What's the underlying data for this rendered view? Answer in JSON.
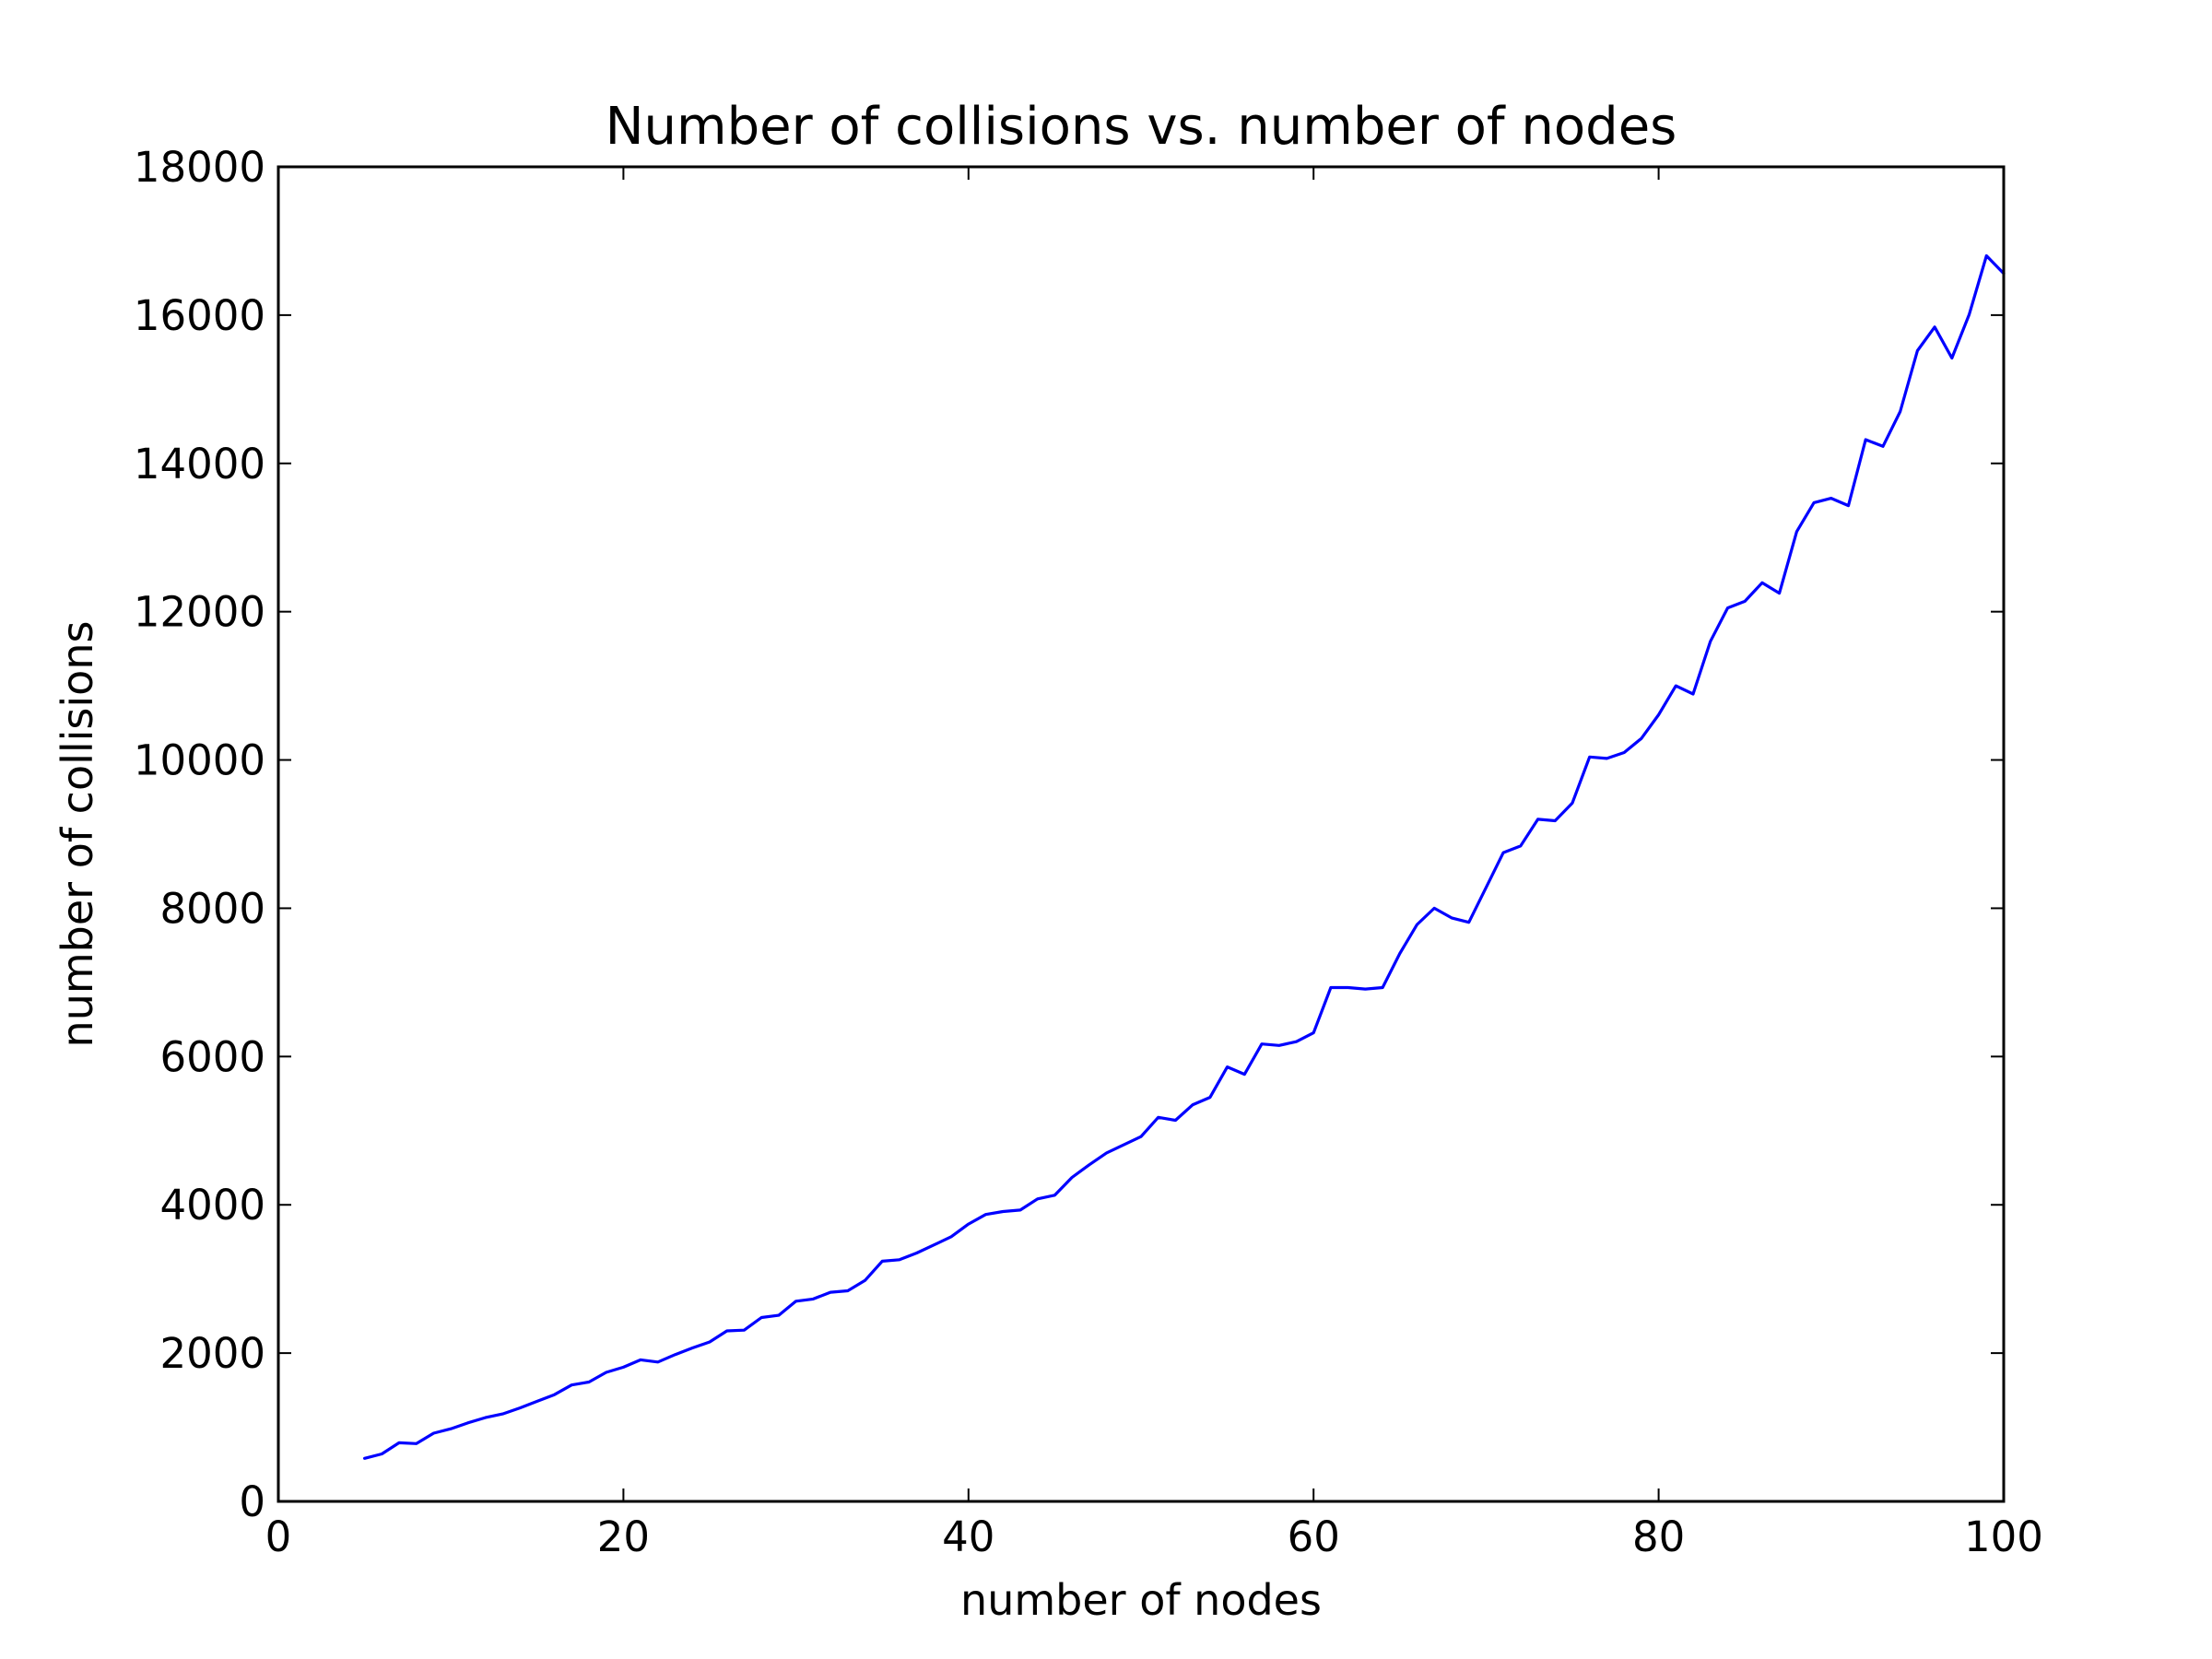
{
  "chart_data": {
    "type": "line",
    "title": "Number of collisions vs. number of nodes",
    "xlabel": "number of nodes",
    "ylabel": "number of collisions",
    "xlim": [
      0,
      100
    ],
    "ylim": [
      0,
      18000
    ],
    "xticks": [
      0,
      20,
      40,
      60,
      80,
      100
    ],
    "yticks": [
      0,
      2000,
      4000,
      6000,
      8000,
      10000,
      12000,
      14000,
      16000,
      18000
    ],
    "grid": false,
    "legend": "none",
    "series": [
      {
        "color": "#0000ff",
        "x": [
          5,
          6,
          7,
          8,
          9,
          10,
          11,
          12,
          13,
          14,
          15,
          16,
          17,
          18,
          19,
          20,
          21,
          22,
          23,
          24,
          25,
          26,
          27,
          28,
          29,
          30,
          31,
          32,
          33,
          34,
          35,
          36,
          37,
          38,
          39,
          40,
          41,
          42,
          43,
          44,
          45,
          46,
          47,
          48,
          49,
          50,
          51,
          52,
          53,
          54,
          55,
          56,
          57,
          58,
          59,
          60,
          61,
          62,
          63,
          64,
          65,
          66,
          67,
          68,
          69,
          70,
          71,
          72,
          73,
          74,
          75,
          76,
          77,
          78,
          79,
          80,
          81,
          82,
          83,
          84,
          85,
          86,
          87,
          88,
          89,
          90,
          91,
          92,
          93,
          94,
          95,
          96,
          97,
          98,
          99,
          100
        ],
        "y": [
          580,
          640,
          790,
          780,
          920,
          980,
          1060,
          1130,
          1180,
          1260,
          1350,
          1440,
          1570,
          1610,
          1740,
          1810,
          1910,
          1880,
          1980,
          2070,
          2150,
          2300,
          2310,
          2480,
          2510,
          2700,
          2730,
          2820,
          2840,
          2980,
          3240,
          3260,
          3350,
          3460,
          3570,
          3740,
          3870,
          3910,
          3930,
          4080,
          4130,
          4370,
          4540,
          4700,
          4810,
          4920,
          5180,
          5140,
          5350,
          5450,
          5860,
          5760,
          6170,
          6150,
          6200,
          6320,
          6930,
          6930,
          6910,
          6930,
          7390,
          7780,
          8000,
          7870,
          7810,
          8280,
          8750,
          8840,
          9200,
          9180,
          9420,
          10040,
          10020,
          10100,
          10290,
          10610,
          11000,
          10890,
          11600,
          12050,
          12140,
          12390,
          12250,
          13080,
          13470,
          13530,
          13430,
          14320,
          14230,
          14700,
          15520,
          15840,
          15420,
          16010,
          16800,
          16560
        ]
      }
    ]
  }
}
